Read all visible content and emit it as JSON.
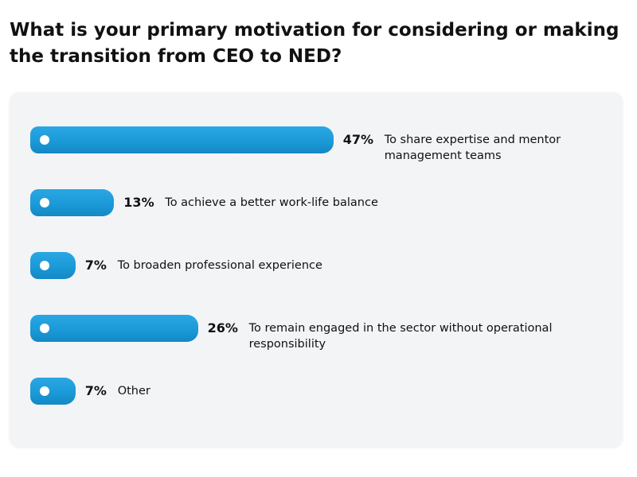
{
  "chart_data": {
    "type": "bar",
    "title": "What is your primary motivation for considering or making the transition from CEO to NED?",
    "categories": [
      "To share expertise and mentor management teams",
      "To achieve a better work-life balance",
      "To broaden professional experience",
      "To remain engaged in the sector without operational responsibility",
      "Other"
    ],
    "values": [
      47,
      13,
      7,
      26,
      7
    ],
    "value_labels": [
      "47%",
      "13%",
      "7%",
      "26%",
      "7%"
    ],
    "color": "#1b9ad8"
  }
}
